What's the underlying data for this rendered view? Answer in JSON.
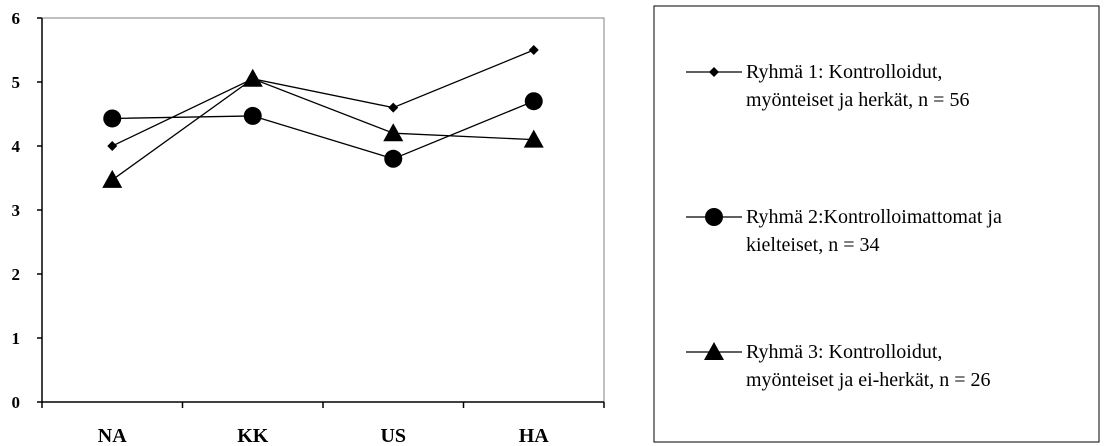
{
  "chart_data": {
    "type": "line",
    "categories": [
      "NA",
      "KK",
      "US",
      "HA"
    ],
    "ylim": [
      0,
      6
    ],
    "yticks": [
      "0",
      "1",
      "2",
      "3",
      "4",
      "5",
      "6"
    ],
    "grid": false,
    "legend_position": "right",
    "series": [
      {
        "name_line1": "Ryhmä 1: Kontrolloidut,",
        "name_line2": "myönteiset ja herkät, n = 56",
        "marker": "diamond",
        "values": [
          4.0,
          5.05,
          4.6,
          5.5
        ]
      },
      {
        "name_line1": "Ryhmä 2:Kontrolloimattomat ja",
        "name_line2": "kielteiset, n = 34",
        "marker": "circle",
        "values": [
          4.43,
          4.47,
          3.8,
          4.7
        ]
      },
      {
        "name_line1": "Ryhmä 3: Kontrolloidut,",
        "name_line2": "myönteiset ja ei-herkät, n = 26",
        "marker": "triangle",
        "values": [
          3.47,
          5.05,
          4.2,
          4.1
        ]
      }
    ]
  }
}
